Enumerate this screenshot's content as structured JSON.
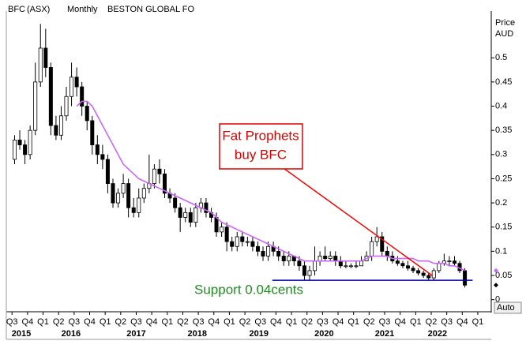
{
  "header": {
    "symbol": "BFC",
    "exchange": "(ASX)",
    "period": "Monthly",
    "name": "BESTON GLOBAL FO",
    "button": "Auto"
  },
  "chart_data": {
    "type": "candlestick",
    "y_axis_title": "Price",
    "y_axis_unit": "AUD",
    "x": [
      0,
      1,
      2,
      3,
      4,
      5,
      6,
      7,
      8,
      9,
      10,
      11,
      12,
      13,
      14,
      15,
      16,
      17,
      18,
      19,
      20,
      21,
      22,
      23,
      24,
      25,
      26,
      27,
      28,
      29,
      30,
      31,
      32,
      33,
      34,
      35,
      36,
      37,
      38,
      39,
      40,
      41,
      42,
      43,
      44,
      45,
      46,
      47,
      48,
      49,
      50,
      51,
      52,
      53,
      54,
      55,
      56,
      57,
      58,
      59,
      60,
      61,
      62,
      63,
      64,
      65,
      66,
      67,
      68,
      69,
      70,
      71,
      72,
      73,
      74,
      75,
      76,
      77,
      78,
      79,
      80,
      81,
      82,
      83,
      84,
      85,
      86,
      87
    ],
    "open": [
      0.29,
      0.33,
      0.32,
      0.3,
      0.35,
      0.45,
      0.52,
      0.48,
      0.36,
      0.34,
      0.38,
      0.42,
      0.46,
      0.44,
      0.4,
      0.37,
      0.32,
      0.3,
      0.29,
      0.24,
      0.2,
      0.22,
      0.24,
      0.19,
      0.18,
      0.21,
      0.23,
      0.24,
      0.27,
      0.26,
      0.22,
      0.21,
      0.19,
      0.17,
      0.18,
      0.16,
      0.19,
      0.2,
      0.18,
      0.17,
      0.14,
      0.15,
      0.12,
      0.11,
      0.13,
      0.12,
      0.12,
      0.11,
      0.1,
      0.09,
      0.11,
      0.1,
      0.09,
      0.08,
      0.09,
      0.08,
      0.07,
      0.05,
      0.06,
      0.08,
      0.09,
      0.085,
      0.09,
      0.08,
      0.07,
      0.07,
      0.07,
      0.07,
      0.08,
      0.09,
      0.12,
      0.13,
      0.1,
      0.09,
      0.08,
      0.075,
      0.07,
      0.065,
      0.06,
      0.055,
      0.05,
      0.045,
      0.06,
      0.075,
      0.08,
      0.08,
      0.075,
      0.06
    ],
    "high": [
      0.34,
      0.35,
      0.33,
      0.36,
      0.49,
      0.57,
      0.56,
      0.49,
      0.38,
      0.4,
      0.44,
      0.49,
      0.48,
      0.45,
      0.41,
      0.38,
      0.34,
      0.32,
      0.3,
      0.25,
      0.23,
      0.26,
      0.25,
      0.21,
      0.23,
      0.24,
      0.3,
      0.28,
      0.29,
      0.27,
      0.23,
      0.22,
      0.2,
      0.19,
      0.19,
      0.2,
      0.21,
      0.21,
      0.19,
      0.18,
      0.16,
      0.16,
      0.13,
      0.14,
      0.14,
      0.13,
      0.13,
      0.12,
      0.11,
      0.12,
      0.12,
      0.11,
      0.1,
      0.1,
      0.09,
      0.09,
      0.08,
      0.07,
      0.11,
      0.1,
      0.11,
      0.1,
      0.1,
      0.09,
      0.08,
      0.075,
      0.08,
      0.09,
      0.1,
      0.13,
      0.15,
      0.14,
      0.11,
      0.1,
      0.09,
      0.08,
      0.08,
      0.07,
      0.065,
      0.06,
      0.055,
      0.065,
      0.08,
      0.095,
      0.09,
      0.09,
      0.08,
      0.065
    ],
    "low": [
      0.28,
      0.31,
      0.28,
      0.29,
      0.34,
      0.44,
      0.46,
      0.34,
      0.33,
      0.33,
      0.37,
      0.4,
      0.42,
      0.38,
      0.35,
      0.3,
      0.28,
      0.27,
      0.22,
      0.19,
      0.19,
      0.21,
      0.17,
      0.17,
      0.17,
      0.2,
      0.22,
      0.23,
      0.24,
      0.21,
      0.2,
      0.18,
      0.14,
      0.16,
      0.15,
      0.15,
      0.18,
      0.17,
      0.16,
      0.13,
      0.13,
      0.1,
      0.1,
      0.1,
      0.11,
      0.11,
      0.1,
      0.09,
      0.08,
      0.08,
      0.09,
      0.08,
      0.07,
      0.07,
      0.07,
      0.06,
      0.04,
      0.04,
      0.05,
      0.07,
      0.08,
      0.08,
      0.07,
      0.065,
      0.065,
      0.065,
      0.065,
      0.07,
      0.08,
      0.08,
      0.11,
      0.09,
      0.08,
      0.075,
      0.07,
      0.065,
      0.06,
      0.055,
      0.05,
      0.045,
      0.04,
      0.04,
      0.055,
      0.07,
      0.07,
      0.07,
      0.055,
      0.025
    ],
    "close": [
      0.33,
      0.32,
      0.3,
      0.35,
      0.45,
      0.52,
      0.48,
      0.36,
      0.34,
      0.38,
      0.42,
      0.46,
      0.44,
      0.4,
      0.37,
      0.32,
      0.3,
      0.29,
      0.24,
      0.2,
      0.22,
      0.24,
      0.19,
      0.18,
      0.21,
      0.23,
      0.24,
      0.27,
      0.26,
      0.22,
      0.21,
      0.19,
      0.17,
      0.18,
      0.16,
      0.19,
      0.2,
      0.18,
      0.17,
      0.14,
      0.15,
      0.12,
      0.11,
      0.13,
      0.12,
      0.12,
      0.11,
      0.1,
      0.09,
      0.11,
      0.1,
      0.09,
      0.08,
      0.09,
      0.08,
      0.07,
      0.05,
      0.06,
      0.08,
      0.09,
      0.085,
      0.09,
      0.08,
      0.07,
      0.07,
      0.07,
      0.07,
      0.08,
      0.09,
      0.12,
      0.13,
      0.1,
      0.09,
      0.08,
      0.075,
      0.07,
      0.065,
      0.06,
      0.055,
      0.05,
      0.045,
      0.06,
      0.075,
      0.08,
      0.08,
      0.075,
      0.06,
      0.03
    ],
    "up_color": "#ffffff",
    "down_color": "#000000",
    "moving_average": {
      "color": "#cc66ff",
      "values": [
        null,
        null,
        null,
        null,
        null,
        null,
        null,
        null,
        null,
        null,
        null,
        null,
        0.4,
        0.41,
        0.41,
        0.4,
        0.38,
        0.36,
        0.34,
        0.32,
        0.3,
        0.28,
        0.27,
        0.26,
        0.25,
        0.245,
        0.24,
        0.235,
        0.23,
        0.225,
        0.22,
        0.215,
        0.21,
        0.205,
        0.2,
        0.195,
        0.19,
        0.185,
        0.18,
        0.17,
        0.16,
        0.155,
        0.15,
        0.145,
        0.14,
        0.135,
        0.13,
        0.125,
        0.12,
        0.115,
        0.11,
        0.105,
        0.1,
        0.095,
        0.09,
        0.085,
        0.08,
        0.08,
        0.08,
        0.08,
        0.08,
        0.08,
        0.08,
        0.08,
        0.08,
        0.08,
        0.08,
        0.08,
        0.085,
        0.09,
        0.09,
        0.09,
        0.09,
        0.085,
        0.085,
        0.085,
        0.085,
        0.085,
        0.08,
        0.08,
        0.08,
        0.075,
        0.075,
        0.075,
        0.07,
        0.07,
        0.065,
        0.06
      ]
    },
    "ylim": [
      -0.025,
      0.595
    ],
    "yticks": [
      0,
      0.05,
      0.1,
      0.15,
      0.2,
      0.25,
      0.3,
      0.35,
      0.4,
      0.45,
      0.5
    ],
    "xlim": [
      -1.6,
      92.1
    ],
    "xticks": [
      {
        "value": -0.5,
        "label": "Q3"
      },
      {
        "value": 2.5,
        "label": "Q4"
      },
      {
        "value": 5.5,
        "label": "Q1"
      },
      {
        "value": 8.5,
        "label": "Q2"
      },
      {
        "value": 11.5,
        "label": "Q3"
      },
      {
        "value": 14.5,
        "label": "Q4"
      },
      {
        "value": 17.5,
        "label": "Q1"
      },
      {
        "value": 20.5,
        "label": "Q2"
      },
      {
        "value": 23.5,
        "label": "Q3"
      },
      {
        "value": 26.5,
        "label": "Q4"
      },
      {
        "value": 29.5,
        "label": "Q1"
      },
      {
        "value": 32.5,
        "label": "Q2"
      },
      {
        "value": 35.5,
        "label": "Q3"
      },
      {
        "value": 38.5,
        "label": "Q4"
      },
      {
        "value": 41.5,
        "label": "Q1"
      },
      {
        "value": 44.5,
        "label": "Q2"
      },
      {
        "value": 47.5,
        "label": "Q3"
      },
      {
        "value": 50.5,
        "label": "Q4"
      },
      {
        "value": 53.5,
        "label": "Q1"
      },
      {
        "value": 56.5,
        "label": "Q2"
      },
      {
        "value": 59.5,
        "label": "Q3"
      },
      {
        "value": 62.5,
        "label": "Q4"
      },
      {
        "value": 65.5,
        "label": "Q1"
      },
      {
        "value": 68.5,
        "label": "Q2"
      },
      {
        "value": 71.5,
        "label": "Q3"
      },
      {
        "value": 74.5,
        "label": "Q4"
      },
      {
        "value": 77.5,
        "label": "Q1"
      },
      {
        "value": 80.5,
        "label": "Q2"
      },
      {
        "value": 83.5,
        "label": "Q3"
      },
      {
        "value": 86.5,
        "label": "Q4"
      },
      {
        "value": 89.5,
        "label": "Q1"
      }
    ],
    "year_labels": [
      {
        "value": 1.3,
        "label": "2015"
      },
      {
        "value": 10.9,
        "label": "2016"
      },
      {
        "value": 23.5,
        "label": "2017"
      },
      {
        "value": 35.3,
        "label": "2018"
      },
      {
        "value": 47.2,
        "label": "2019"
      },
      {
        "value": 59.8,
        "label": "2020"
      },
      {
        "value": 71.5,
        "label": "2021"
      },
      {
        "value": 81.7,
        "label": "2022"
      }
    ],
    "lines": [
      {
        "x": [
          49.8,
          88.5
        ],
        "y": [
          0.04,
          0.04
        ],
        "color": "#0000aa"
      },
      {
        "x": [
          51.8,
          80.8
        ],
        "y": [
          0.273,
          0.049
        ],
        "color": "#ff0000"
      }
    ],
    "annotations": [
      {
        "lines": [
          "Fat Prophets",
          "buy BFC"
        ],
        "color": "#dd0000",
        "boxed": true
      },
      {
        "lines": [
          "Support 0.04cents"
        ],
        "color": "#228b22",
        "boxed": false
      }
    ],
    "last_markers": [
      {
        "value": 0.06,
        "color": "#cc66ff"
      },
      {
        "value": 0.03,
        "color": "#000000"
      }
    ]
  }
}
